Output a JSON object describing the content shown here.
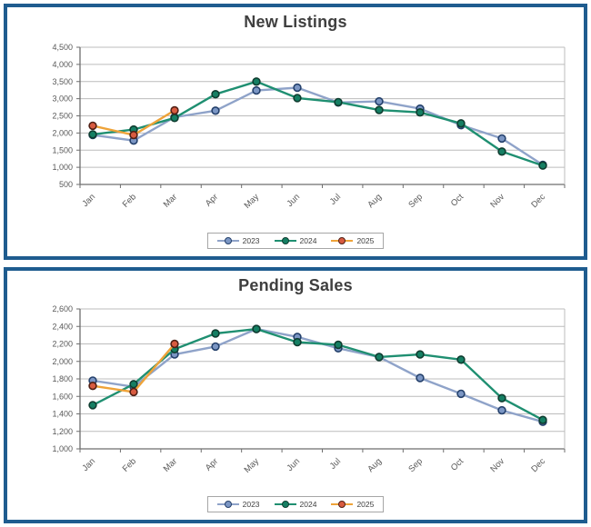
{
  "page": {
    "panel_border_color": "#1f5c8f",
    "grid_color": "#bcbcbc",
    "axis_color": "#6e6e6e",
    "label_color": "#595959",
    "title_color": "#3f3f3f",
    "legend_border_color": "#a6a6a6"
  },
  "chart_data": [
    {
      "type": "line",
      "title": "New Listings",
      "categories": [
        "Jan",
        "Feb",
        "Mar",
        "Apr",
        "May",
        "Jun",
        "Jul",
        "Aug",
        "Sep",
        "Oct",
        "Nov",
        "Dec"
      ],
      "ylim": [
        500,
        4500
      ],
      "ystep": 500,
      "y_tick_labels": [
        "4,500",
        "4,000",
        "3,500",
        "3,000",
        "2,500",
        "2,000",
        "1,500",
        "1,000",
        "500"
      ],
      "grid": true,
      "legend_position": "bottom",
      "series": [
        {
          "name": "2023",
          "line_color": "#8fa3c9",
          "marker_fill": "#7b96c4",
          "marker_border": "#24406b",
          "values": [
            1940,
            1780,
            2460,
            2650,
            3240,
            3320,
            2890,
            2920,
            2710,
            2230,
            1840,
            1070
          ]
        },
        {
          "name": "2024",
          "line_color": "#1f8f71",
          "marker_fill": "#157f63",
          "marker_border": "#0f3d30",
          "values": [
            1960,
            2100,
            2440,
            3130,
            3500,
            3020,
            2900,
            2670,
            2600,
            2280,
            1460,
            1050
          ]
        },
        {
          "name": "2025",
          "line_color": "#eea339",
          "marker_fill": "#d85b40",
          "marker_border": "#502015",
          "values": [
            2210,
            1940,
            2660
          ]
        }
      ]
    },
    {
      "type": "line",
      "title": "Pending Sales",
      "categories": [
        "Jan",
        "Feb",
        "Mar",
        "Apr",
        "May",
        "Jun",
        "Jul",
        "Aug",
        "Sep",
        "Oct",
        "Nov",
        "Dec"
      ],
      "ylim": [
        1000,
        2600
      ],
      "ystep": 200,
      "y_tick_labels": [
        "2,600",
        "2,400",
        "2,200",
        "2,000",
        "1,800",
        "1,600",
        "1,400",
        "1,200",
        "1,000"
      ],
      "grid": true,
      "legend_position": "bottom",
      "series": [
        {
          "name": "2023",
          "line_color": "#8fa3c9",
          "marker_fill": "#7b96c4",
          "marker_border": "#24406b",
          "values": [
            1780,
            1710,
            2080,
            2170,
            2370,
            2280,
            2150,
            2050,
            1810,
            1630,
            1440,
            1310
          ]
        },
        {
          "name": "2024",
          "line_color": "#1f8f71",
          "marker_fill": "#157f63",
          "marker_border": "#0f3d30",
          "values": [
            1500,
            1740,
            2140,
            2320,
            2370,
            2220,
            2190,
            2050,
            2080,
            2020,
            1580,
            1330
          ]
        },
        {
          "name": "2025",
          "line_color": "#eea339",
          "marker_fill": "#d85b40",
          "marker_border": "#502015",
          "values": [
            1720,
            1650,
            2200
          ]
        }
      ]
    }
  ]
}
